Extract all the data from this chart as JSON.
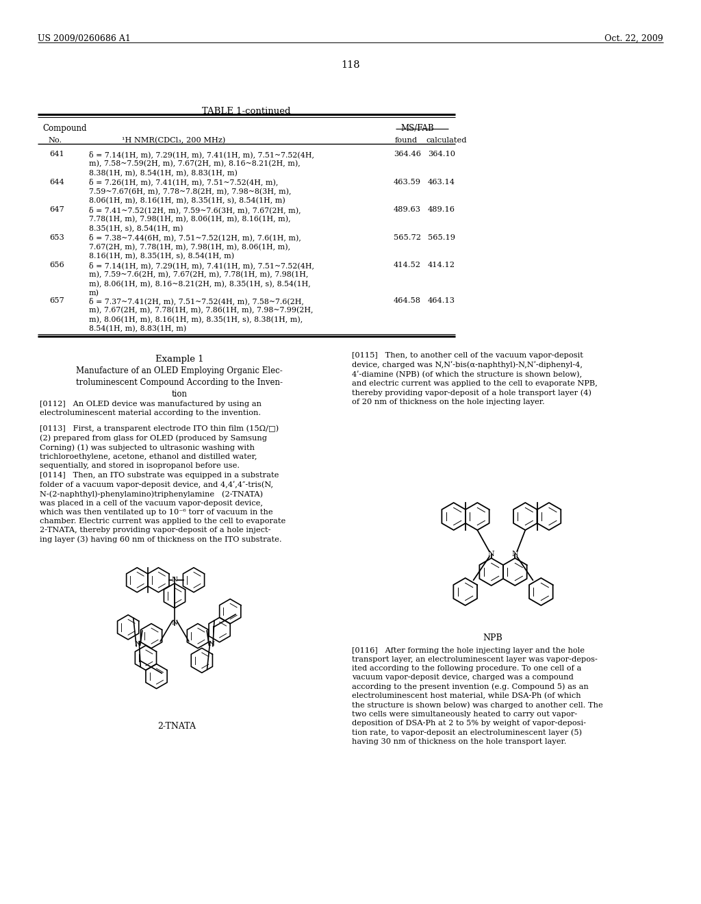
{
  "header_left": "US 2009/0260686 A1",
  "header_right": "Oct. 22, 2009",
  "page_number": "118",
  "table_title": "TABLE 1-continued",
  "bg_color": "#ffffff",
  "table_rows": [
    {
      "no": "641",
      "nmr": "δ = 7.14(1H, m), 7.29(1H, m), 7.41(1H, m), 7.51~7.52(4H,\nm), 7.58~7.59(2H, m), 7.67(2H, m), 8.16~8.21(2H, m),\n8.38(1H, m), 8.54(1H, m), 8.83(1H, m)",
      "found": "364.46",
      "calc": "364.10",
      "nlines": 3
    },
    {
      "no": "644",
      "nmr": "δ = 7.26(1H, m), 7.41(1H, m), 7.51~7.52(4H, m),\n7.59~7.67(6H, m), 7.78~7.8(2H, m), 7.98~8(3H, m),\n8.06(1H, m), 8.16(1H, m), 8.35(1H, s), 8.54(1H, m)",
      "found": "463.59",
      "calc": "463.14",
      "nlines": 3
    },
    {
      "no": "647",
      "nmr": "δ = 7.41~7.52(12H, m), 7.59~7.6(3H, m), 7.67(2H, m),\n7.78(1H, m), 7.98(1H, m), 8.06(1H, m), 8.16(1H, m),\n8.35(1H, s), 8.54(1H, m)",
      "found": "489.63",
      "calc": "489.16",
      "nlines": 3
    },
    {
      "no": "653",
      "nmr": "δ = 7.38~7.44(6H, m), 7.51~7.52(12H, m), 7.6(1H, m),\n7.67(2H, m), 7.78(1H, m), 7.98(1H, m), 8.06(1H, m),\n8.16(1H, m), 8.35(1H, s), 8.54(1H, m)",
      "found": "565.72",
      "calc": "565.19",
      "nlines": 3
    },
    {
      "no": "656",
      "nmr": "δ = 7.14(1H, m), 7.29(1H, m), 7.41(1H, m), 7.51~7.52(4H,\nm), 7.59~7.6(2H, m), 7.67(2H, m), 7.78(1H, m), 7.98(1H,\nm), 8.06(1H, m), 8.16~8.21(2H, m), 8.35(1H, s), 8.54(1H,\nm)",
      "found": "414.52",
      "calc": "414.12",
      "nlines": 4
    },
    {
      "no": "657",
      "nmr": "δ = 7.37~7.41(2H, m), 7.51~7.52(4H, m), 7.58~7.6(2H,\nm), 7.67(2H, m), 7.78(1H, m), 7.86(1H, m), 7.98~7.99(2H,\nm), 8.06(1H, m), 8.16(1H, m), 8.35(1H, s), 8.38(1H, m),\n8.54(1H, m), 8.83(1H, m)",
      "found": "464.58",
      "calc": "464.13",
      "nlines": 4
    }
  ],
  "para_0112": "[0112]   An OLED device was manufactured by using an\nelectroluminescent material according to the invention.",
  "para_0113": "[0113]   First, a transparent electrode ITO thin film (15Ω/□)\n(2) prepared from glass for OLED (produced by Samsung\nCorning) (1) was subjected to ultrasonic washing with\ntrichloroethylene, acetone, ethanol and distilled water,\nsequentially, and stored in isopropanol before use.",
  "para_0114": "[0114]   Then, an ITO substrate was equipped in a substrate\nfolder of a vacuum vapor-deposit device, and 4,4ʹ,4″-tris(N,\nN-(2-naphthyl)-phenylamino)triphenylamine   (2-TNATA)\nwas placed in a cell of the vacuum vapor-deposit device,\nwhich was then ventilated up to 10⁻⁶ torr of vacuum in the\nchamber. Electric current was applied to the cell to evaporate\n2-TNATA, thereby providing vapor-deposit of a hole inject-\ning layer (3) having 60 nm of thickness on the ITO substrate.",
  "para_0115": "[0115]   Then, to another cell of the vacuum vapor-deposit\ndevice, charged was N,Nʹ-bis(α-naphthyl)-N,Nʹ-diphenyl-4,\n4ʹ-diamine (NPB) (of which the structure is shown below),\nand electric current was applied to the cell to evaporate NPB,\nthereby providing vapor-deposit of a hole transport layer (4)\nof 20 nm of thickness on the hole injecting layer.",
  "para_0116": "[0116]   After forming the hole injecting layer and the hole\ntransport layer, an electroluminescent layer was vapor-depos-\nited according to the following procedure. To one cell of a\nvacuum vapor-deposit device, charged was a compound\naccording to the present invention (e.g. Compound 5) as an\nelectroluminescent host material, while DSA-Ph (of which\nthe structure is shown below) was charged to another cell. The\ntwo cells were simultaneously heated to carry out vapor-\ndeposition of DSA-Ph at 2 to 5% by weight of vapor-deposi-\ntion rate, to vapor-deposit an electroluminescent layer (5)\nhaving 30 nm of thickness on the hole transport layer."
}
